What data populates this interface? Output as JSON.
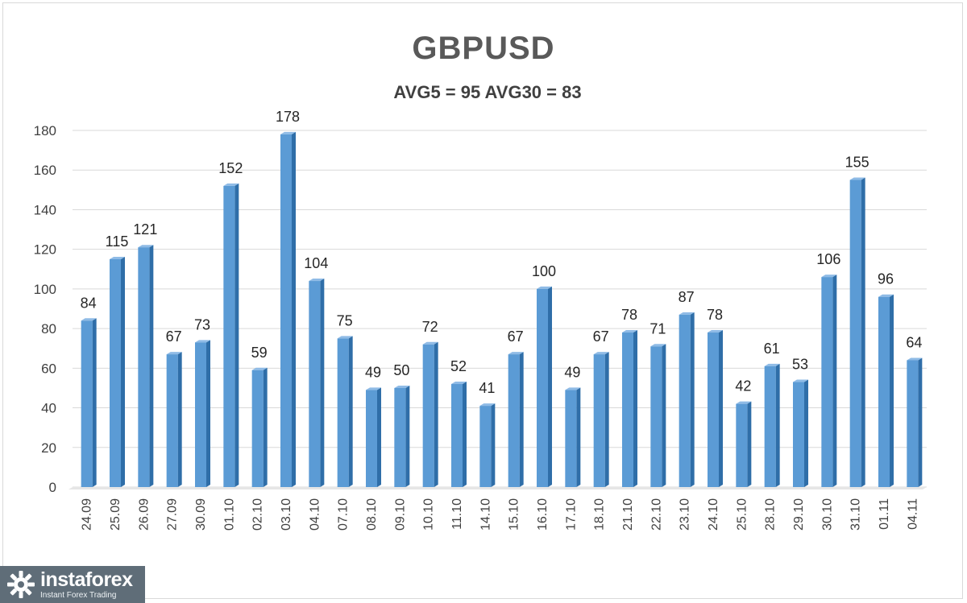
{
  "title": "GBPUSD",
  "subtitle": "AVG5 = 95 AVG30 = 83",
  "chart_data": {
    "type": "bar",
    "title": "GBPUSD",
    "subtitle": "AVG5 = 95 AVG30 = 83",
    "categories": [
      "24.09",
      "25.09",
      "26.09",
      "27.09",
      "30.09",
      "01.10",
      "02.10",
      "03.10",
      "04.10",
      "07.10",
      "08.10",
      "09.10",
      "10.10",
      "11.10",
      "14.10",
      "15.10",
      "16.10",
      "17.10",
      "18.10",
      "21.10",
      "22.10",
      "23.10",
      "24.10",
      "25.10",
      "28.10",
      "29.10",
      "30.10",
      "31.10",
      "01.11",
      "04.11"
    ],
    "values": [
      84,
      115,
      121,
      67,
      73,
      152,
      59,
      178,
      104,
      75,
      49,
      50,
      72,
      52,
      41,
      67,
      100,
      49,
      67,
      78,
      71,
      87,
      78,
      42,
      61,
      53,
      106,
      155,
      96,
      64
    ],
    "ylim": [
      0,
      180
    ],
    "yticks": [
      0,
      20,
      40,
      60,
      80,
      100,
      120,
      140,
      160,
      180
    ],
    "grid": true,
    "xlabel": "",
    "ylabel": "",
    "bar_color": "#5b9bd5",
    "bar_color_dark": "#2f6ea8"
  },
  "watermark": {
    "name": "instaforex",
    "tagline": "Instant Forex Trading",
    "icon": "gear-logo-icon"
  }
}
